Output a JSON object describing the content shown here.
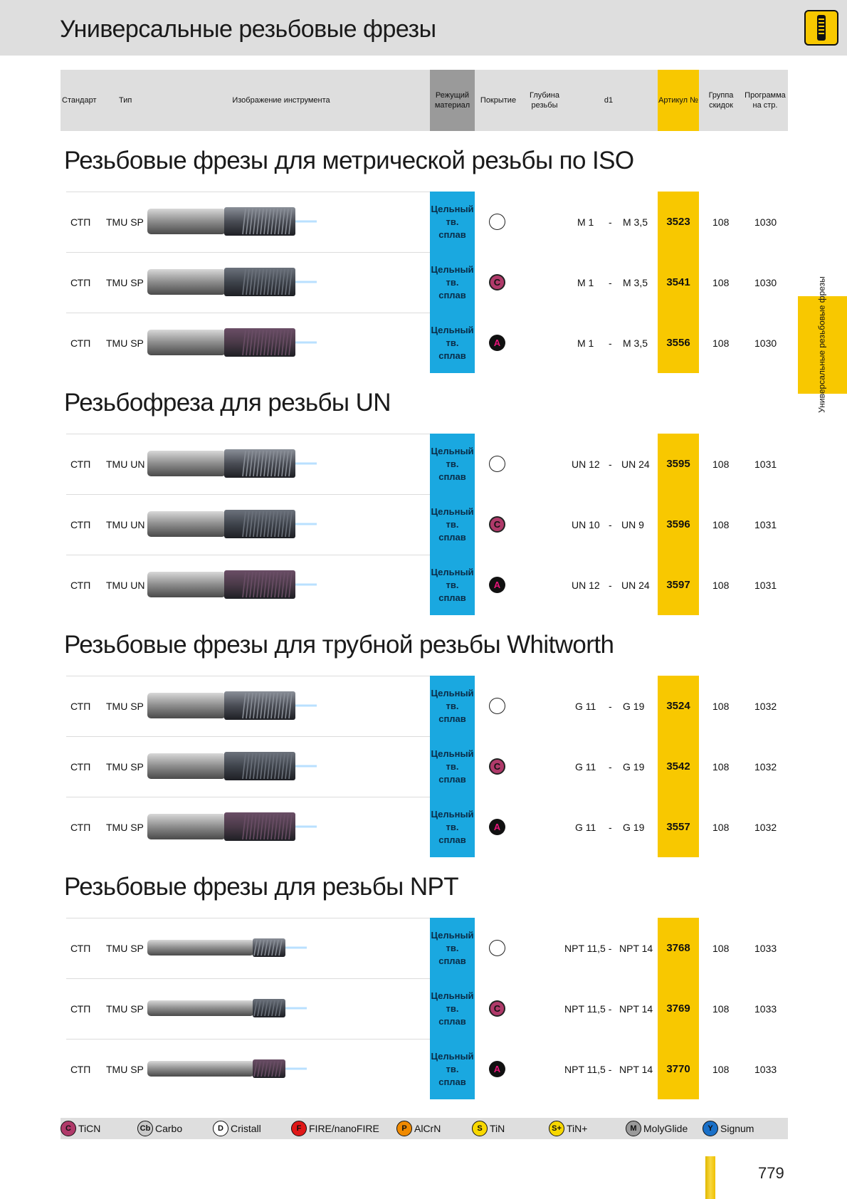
{
  "page_title": "Универсальные резьбовые фрезы",
  "header": {
    "standard": "Стандарт",
    "type": "Тип",
    "image": "Изображение инструмента",
    "material": "Режущий материал",
    "coating": "Покрытие",
    "depth": "Глубина резьбы",
    "d1": "d1",
    "article": "Артикул №",
    "discount": "Группа скидок",
    "program": "Программа на стр."
  },
  "sections": [
    {
      "title": "Резьбовые фрезы для метрической резьбы по ISO",
      "rows": [
        {
          "standard": "СТП",
          "type": "TMU SP",
          "material": "Цельный тв. сплав",
          "coating": "none",
          "coating_label": "",
          "d1_from": "M 1",
          "dash": "-",
          "d1_to": "M 3,5",
          "article": "3523",
          "discount": "108",
          "program": "1030"
        },
        {
          "standard": "СТП",
          "type": "TMU SP",
          "material": "Цельный тв. сплав",
          "coating": "c",
          "coating_label": "C",
          "d1_from": "M 1",
          "dash": "-",
          "d1_to": "M 3,5",
          "article": "3541",
          "discount": "108",
          "program": "1030"
        },
        {
          "standard": "СТП",
          "type": "TMU SP",
          "material": "Цельный тв. сплав",
          "coating": "a",
          "coating_label": "A",
          "d1_from": "M 1",
          "dash": "-",
          "d1_to": "M 3,5",
          "article": "3556",
          "discount": "108",
          "program": "1030"
        }
      ]
    },
    {
      "title": "Резьбофреза для резьбы UN",
      "rows": [
        {
          "standard": "СТП",
          "type": "TMU UN",
          "material": "Цельный тв. сплав",
          "coating": "none",
          "coating_label": "",
          "d1_from": "UN 12",
          "dash": "-",
          "d1_to": "UN 24",
          "article": "3595",
          "discount": "108",
          "program": "1031"
        },
        {
          "standard": "СТП",
          "type": "TMU UN",
          "material": "Цельный тв. сплав",
          "coating": "c",
          "coating_label": "C",
          "d1_from": "UN 10",
          "dash": "-",
          "d1_to": "UN 9",
          "article": "3596",
          "discount": "108",
          "program": "1031"
        },
        {
          "standard": "СТП",
          "type": "TMU UN",
          "material": "Цельный тв. сплав",
          "coating": "a",
          "coating_label": "A",
          "d1_from": "UN 12",
          "dash": "-",
          "d1_to": "UN 24",
          "article": "3597",
          "discount": "108",
          "program": "1031"
        }
      ]
    },
    {
      "title": "Резьбовые фрезы для трубной резьбы Whitworth",
      "rows": [
        {
          "standard": "СТП",
          "type": "TMU SP",
          "material": "Цельный тв. сплав",
          "coating": "none",
          "coating_label": "",
          "d1_from": "G 11",
          "dash": "-",
          "d1_to": "G 19",
          "article": "3524",
          "discount": "108",
          "program": "1032"
        },
        {
          "standard": "СТП",
          "type": "TMU SP",
          "material": "Цельный тв. сплав",
          "coating": "c",
          "coating_label": "C",
          "d1_from": "G 11",
          "dash": "-",
          "d1_to": "G 19",
          "article": "3542",
          "discount": "108",
          "program": "1032"
        },
        {
          "standard": "СТП",
          "type": "TMU SP",
          "material": "Цельный тв. сплав",
          "coating": "a",
          "coating_label": "A",
          "d1_from": "G 11",
          "dash": "-",
          "d1_to": "G 19",
          "article": "3557",
          "discount": "108",
          "program": "1032"
        }
      ]
    },
    {
      "title": "Резьбовые фрезы для резьбы NPT",
      "rows": [
        {
          "standard": "СТП",
          "type": "TMU SP",
          "material": "Цельный тв. сплав",
          "coating": "none",
          "coating_label": "",
          "d1_from": "NPT 11,5 -",
          "dash": "",
          "d1_to": "NPT 14",
          "article": "3768",
          "discount": "108",
          "program": "1033"
        },
        {
          "standard": "СТП",
          "type": "TMU SP",
          "material": "Цельный тв. сплав",
          "coating": "c",
          "coating_label": "C",
          "d1_from": "NPT 11,5 -",
          "dash": "",
          "d1_to": "NPT 14",
          "article": "3769",
          "discount": "108",
          "program": "1033"
        },
        {
          "standard": "СТП",
          "type": "TMU SP",
          "material": "Цельный тв. сплав",
          "coating": "a",
          "coating_label": "A",
          "d1_from": "NPT 11,5 -",
          "dash": "",
          "d1_to": "NPT 14",
          "article": "3770",
          "discount": "108",
          "program": "1033"
        }
      ]
    }
  ],
  "legend": [
    {
      "badge": "C",
      "label": "TiCN",
      "bg": "#b03a6a",
      "fg": "#111111"
    },
    {
      "badge": "Cb",
      "label": "Carbo",
      "bg": "#c9c9c9",
      "fg": "#111111"
    },
    {
      "badge": "D",
      "label": "Cristall",
      "bg": "#ffffff",
      "fg": "#111111"
    },
    {
      "badge": "F",
      "label": "FIRE/nanoFIRE",
      "bg": "#e01818",
      "fg": "#111111"
    },
    {
      "badge": "P",
      "label": "AlCrN",
      "bg": "#f08a00",
      "fg": "#111111"
    },
    {
      "badge": "S",
      "label": "TiN",
      "bg": "#f8d800",
      "fg": "#111111"
    },
    {
      "badge": "S+",
      "label": "TiN+",
      "bg": "#f8d800",
      "fg": "#111111"
    },
    {
      "badge": "M",
      "label": "MolyGlide",
      "bg": "#9a9a9a",
      "fg": "#111111"
    },
    {
      "badge": "Y",
      "label": "Signum",
      "bg": "#1a70c8",
      "fg": "#111111"
    }
  ],
  "side_tab": "Универсальные резьбовые фрезы",
  "page_number": "779",
  "colors": {
    "article_bg": "#f8c800",
    "material_bg": "#1aa8e0",
    "header_bg": "#dedede"
  }
}
